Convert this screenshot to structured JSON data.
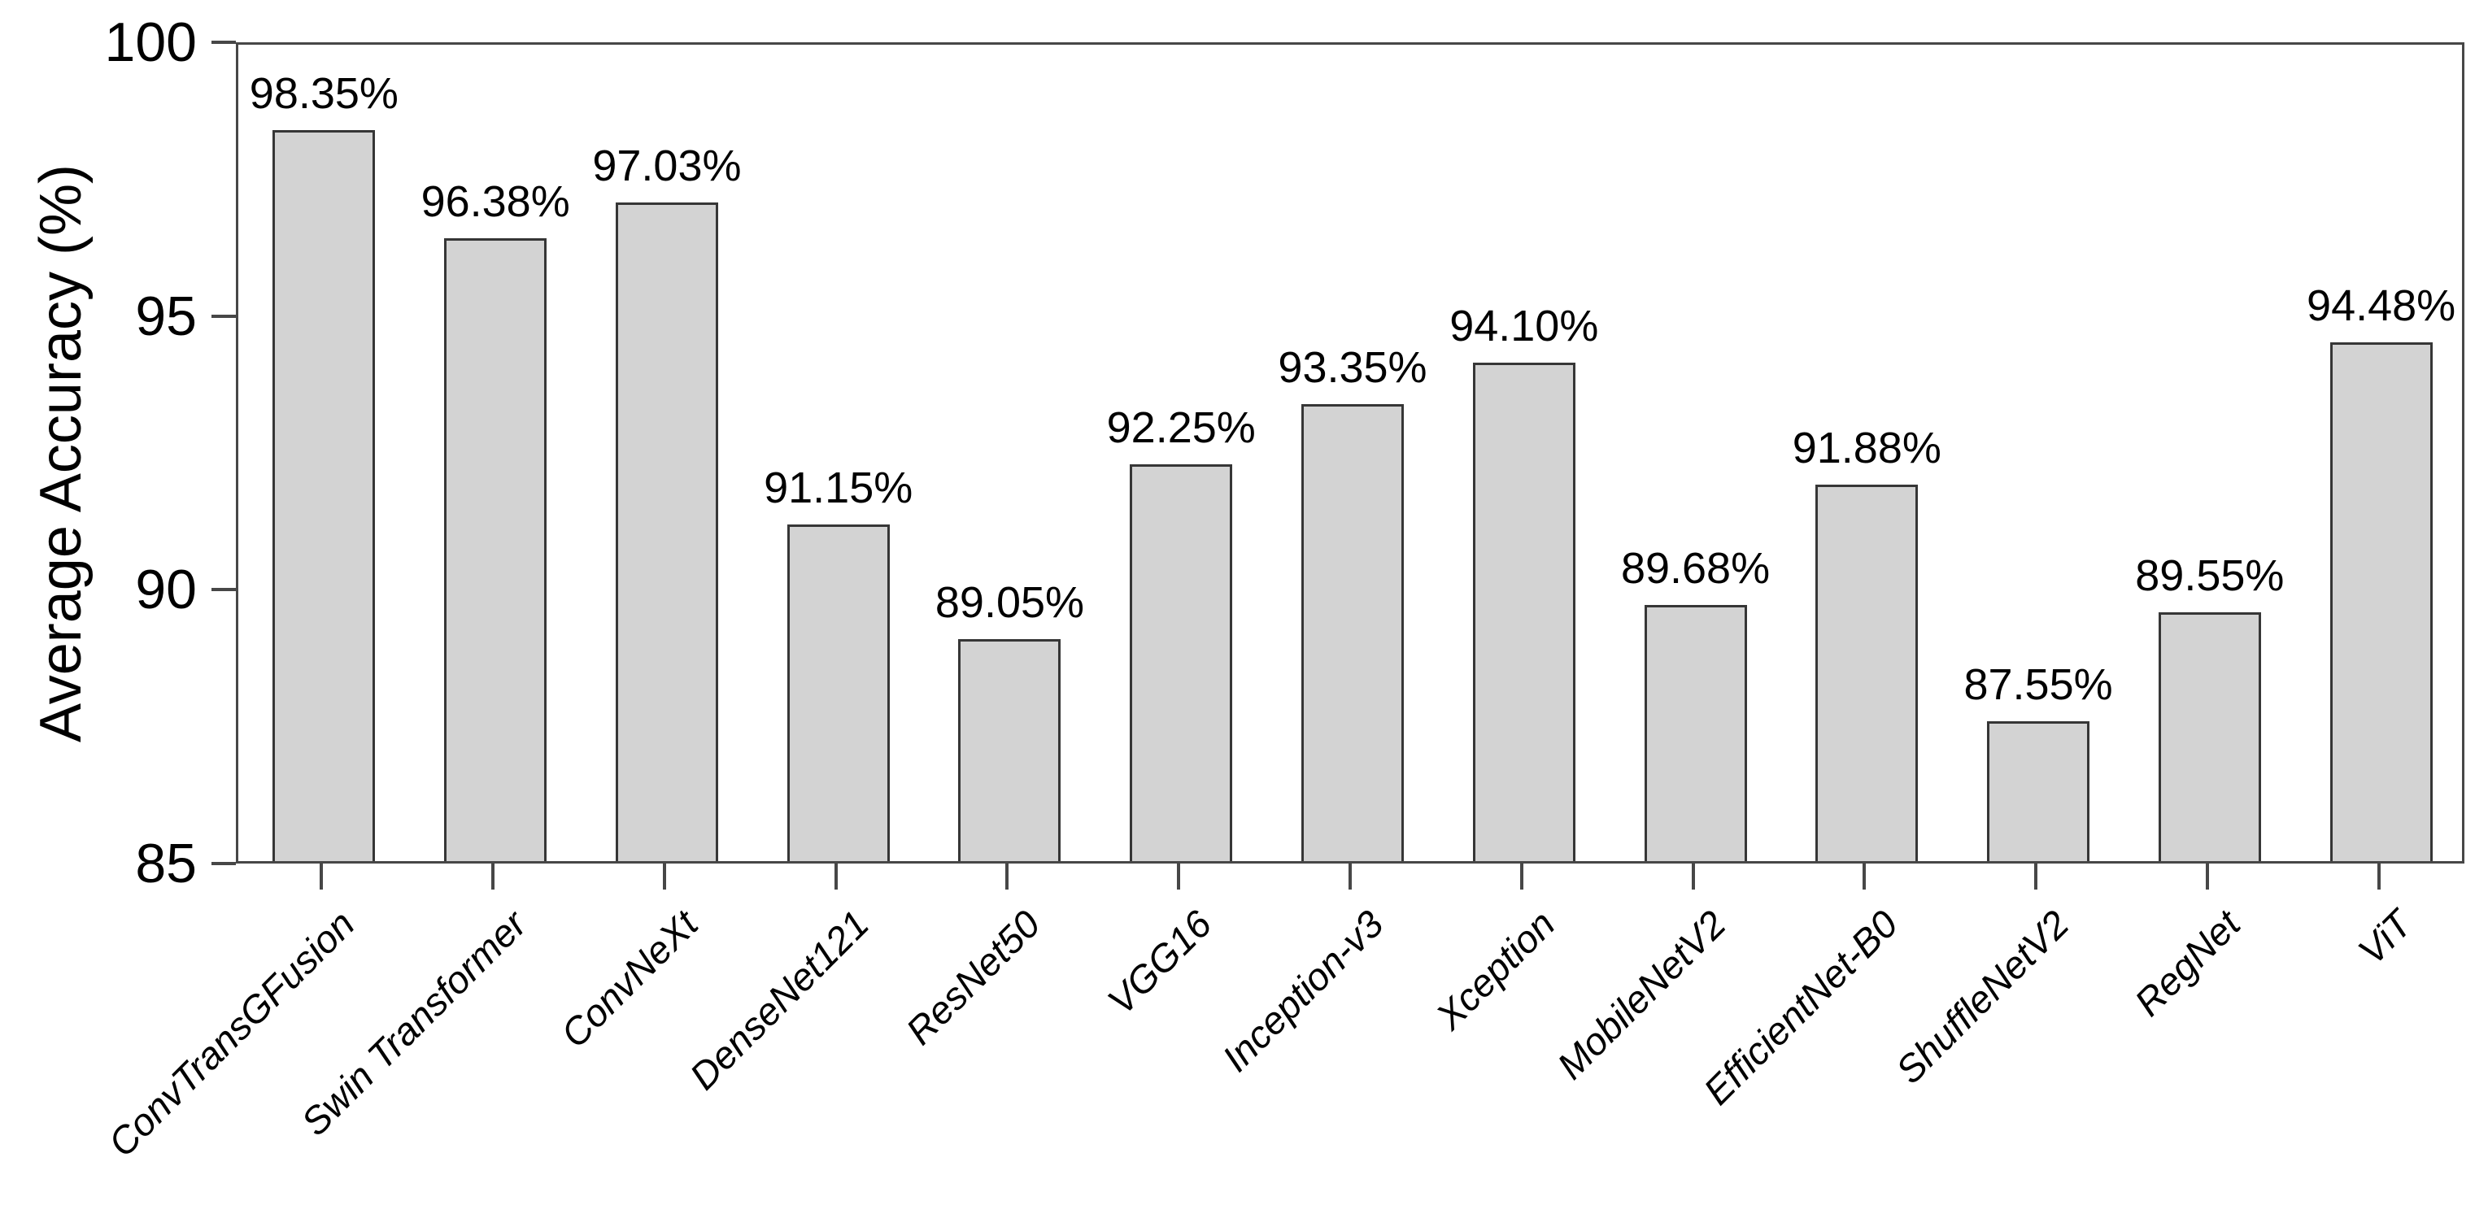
{
  "chart_data": {
    "type": "bar",
    "title": "",
    "xlabel": "",
    "ylabel": "Average Accuracy (%)",
    "ylim": [
      85,
      100
    ],
    "yticks": [
      85,
      90,
      95,
      100
    ],
    "ytick_labels": [
      "85",
      "90",
      "95",
      "100"
    ],
    "grid": false,
    "legend": "none",
    "categories": [
      "ConvTransGFusion",
      "Swin Transformer",
      "ConvNeXt",
      "DenseNet121",
      "ResNet50",
      "VGG16",
      "Inception-v3",
      "Xception",
      "MobileNetV2",
      "EfficientNet-B0",
      "ShuffleNetV2",
      "RegNet",
      "ViT"
    ],
    "values": [
      98.35,
      96.38,
      97.03,
      91.15,
      89.05,
      92.25,
      93.35,
      94.1,
      89.68,
      91.88,
      87.55,
      89.55,
      94.48
    ],
    "value_labels": [
      "98.35%",
      "96.38%",
      "97.03%",
      "91.15%",
      "89.05%",
      "92.25%",
      "93.35%",
      "94.10%",
      "89.68%",
      "91.88%",
      "87.55%",
      "89.55%",
      "94.48%"
    ],
    "colors": {
      "bar_fill": "#d3d3d3",
      "bar_border": "#363636",
      "axis": "#474747",
      "text": "#000000",
      "background": "#ffffff"
    }
  }
}
